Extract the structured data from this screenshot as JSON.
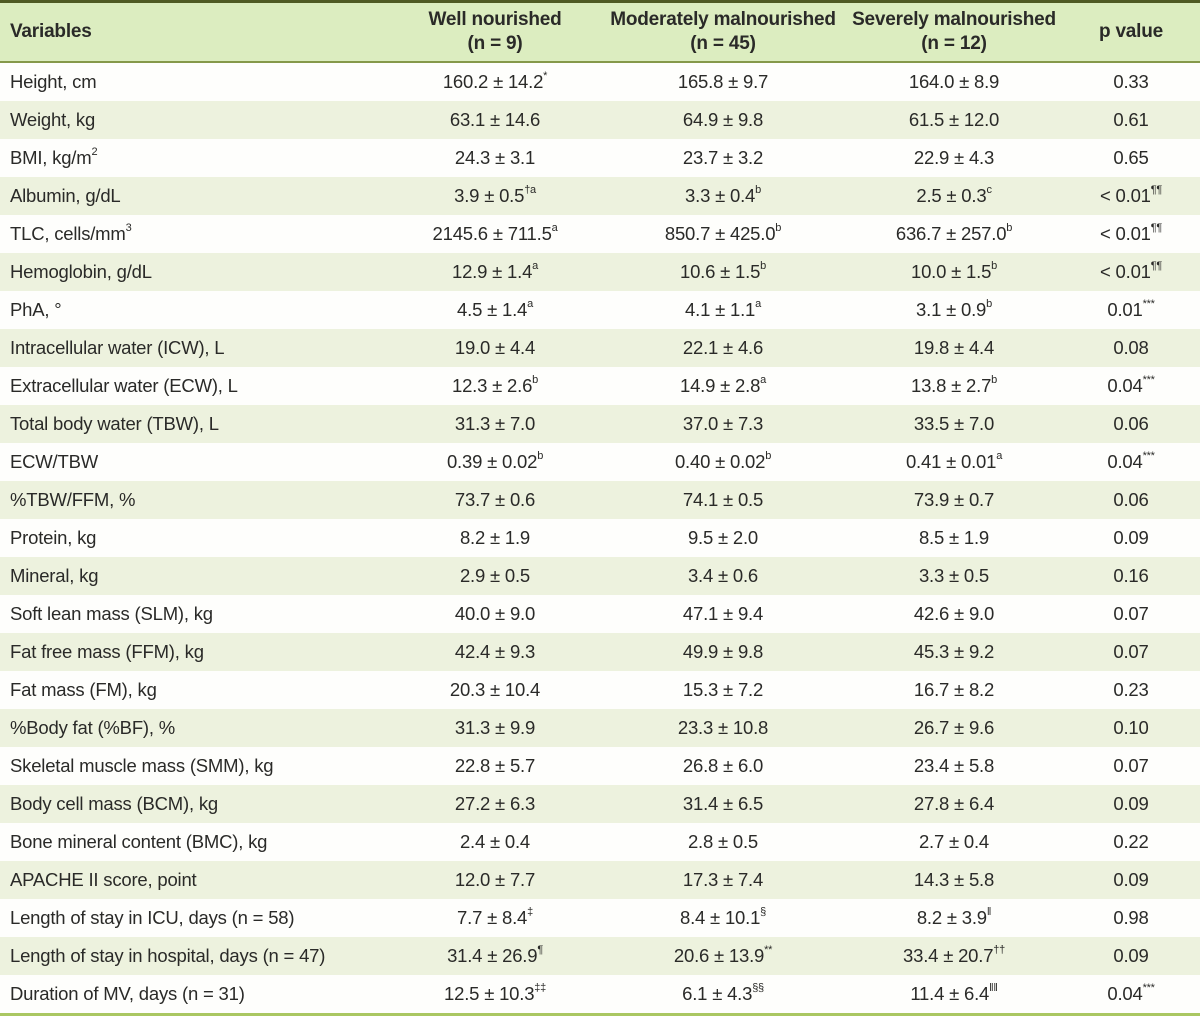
{
  "colors": {
    "header_bg": "#dcedc0",
    "stripe_bg": "#edf2de",
    "row_bg": "#fefefc",
    "top_border": "#4f5a24",
    "header_border": "#85994a",
    "bottom_border": "#aac762",
    "text": "#2a2a28"
  },
  "table": {
    "header": {
      "variables": "Variables",
      "groups": [
        {
          "line1": "Well nourished",
          "line2": "(n = 9)"
        },
        {
          "line1": "Moderately malnourished",
          "line2": "(n = 45)"
        },
        {
          "line1": "Severely malnourished",
          "line2": "(n = 12)"
        }
      ],
      "p": "p value"
    },
    "rows": [
      {
        "label": "Height, cm",
        "label_sup": "",
        "cells": [
          {
            "v": "160.2 ± 14.2",
            "s": "*"
          },
          {
            "v": "165.8 ± 9.7",
            "s": ""
          },
          {
            "v": "164.0 ± 8.9",
            "s": ""
          },
          {
            "v": "0.33",
            "s": ""
          }
        ]
      },
      {
        "label": "Weight, kg",
        "label_sup": "",
        "cells": [
          {
            "v": "63.1 ± 14.6",
            "s": ""
          },
          {
            "v": "64.9 ± 9.8",
            "s": ""
          },
          {
            "v": "61.5 ± 12.0",
            "s": ""
          },
          {
            "v": "0.61",
            "s": ""
          }
        ]
      },
      {
        "label": "BMI, kg/m",
        "label_sup": "2",
        "cells": [
          {
            "v": "24.3 ± 3.1",
            "s": ""
          },
          {
            "v": "23.7 ± 3.2",
            "s": ""
          },
          {
            "v": "22.9 ± 4.3",
            "s": ""
          },
          {
            "v": "0.65",
            "s": ""
          }
        ]
      },
      {
        "label": "Albumin, g/dL",
        "label_sup": "",
        "cells": [
          {
            "v": "3.9 ± 0.5",
            "s": "†a"
          },
          {
            "v": "3.3 ± 0.4",
            "s": "b"
          },
          {
            "v": "2.5 ± 0.3",
            "s": "c"
          },
          {
            "v": "< 0.01",
            "s": "¶¶"
          }
        ]
      },
      {
        "label": "TLC, cells/mm",
        "label_sup": "3",
        "cells": [
          {
            "v": "2145.6 ± 711.5",
            "s": "a"
          },
          {
            "v": "850.7 ± 425.0",
            "s": "b"
          },
          {
            "v": "636.7 ± 257.0",
            "s": "b"
          },
          {
            "v": "< 0.01",
            "s": "¶¶"
          }
        ]
      },
      {
        "label": "Hemoglobin, g/dL",
        "label_sup": "",
        "cells": [
          {
            "v": "12.9 ± 1.4",
            "s": "a"
          },
          {
            "v": "10.6 ± 1.5",
            "s": "b"
          },
          {
            "v": "10.0 ± 1.5",
            "s": "b"
          },
          {
            "v": "< 0.01",
            "s": "¶¶"
          }
        ]
      },
      {
        "label": "PhA, °",
        "label_sup": "",
        "cells": [
          {
            "v": "4.5 ± 1.4",
            "s": "a"
          },
          {
            "v": "4.1 ± 1.1",
            "s": "a"
          },
          {
            "v": "3.1 ± 0.9",
            "s": "b"
          },
          {
            "v": "0.01",
            "s": "***"
          }
        ]
      },
      {
        "label": "Intracellular water (ICW), L",
        "label_sup": "",
        "cells": [
          {
            "v": "19.0 ± 4.4",
            "s": ""
          },
          {
            "v": "22.1 ± 4.6",
            "s": ""
          },
          {
            "v": "19.8 ± 4.4",
            "s": ""
          },
          {
            "v": "0.08",
            "s": ""
          }
        ]
      },
      {
        "label": "Extracellular water (ECW), L",
        "label_sup": "",
        "cells": [
          {
            "v": "12.3 ± 2.6",
            "s": "b"
          },
          {
            "v": "14.9 ± 2.8",
            "s": "a"
          },
          {
            "v": "13.8 ± 2.7",
            "s": "b"
          },
          {
            "v": "0.04",
            "s": "***"
          }
        ]
      },
      {
        "label": "Total body water (TBW), L",
        "label_sup": "",
        "cells": [
          {
            "v": "31.3 ± 7.0",
            "s": ""
          },
          {
            "v": "37.0 ± 7.3",
            "s": ""
          },
          {
            "v": "33.5 ± 7.0",
            "s": ""
          },
          {
            "v": "0.06",
            "s": ""
          }
        ]
      },
      {
        "label": "ECW/TBW",
        "label_sup": "",
        "cells": [
          {
            "v": "0.39 ± 0.02",
            "s": "b"
          },
          {
            "v": "0.40 ± 0.02",
            "s": "b"
          },
          {
            "v": "0.41 ± 0.01",
            "s": "a"
          },
          {
            "v": "0.04",
            "s": "***"
          }
        ]
      },
      {
        "label": "%TBW/FFM, %",
        "label_sup": "",
        "cells": [
          {
            "v": "73.7 ± 0.6",
            "s": ""
          },
          {
            "v": "74.1 ± 0.5",
            "s": ""
          },
          {
            "v": "73.9 ± 0.7",
            "s": ""
          },
          {
            "v": "0.06",
            "s": ""
          }
        ]
      },
      {
        "label": "Protein, kg",
        "label_sup": "",
        "cells": [
          {
            "v": "8.2 ± 1.9",
            "s": ""
          },
          {
            "v": "9.5 ± 2.0",
            "s": ""
          },
          {
            "v": "8.5 ± 1.9",
            "s": ""
          },
          {
            "v": "0.09",
            "s": ""
          }
        ]
      },
      {
        "label": "Mineral, kg",
        "label_sup": "",
        "cells": [
          {
            "v": "2.9 ± 0.5",
            "s": ""
          },
          {
            "v": "3.4 ± 0.6",
            "s": ""
          },
          {
            "v": "3.3 ± 0.5",
            "s": ""
          },
          {
            "v": "0.16",
            "s": ""
          }
        ]
      },
      {
        "label": "Soft lean mass (SLM), kg",
        "label_sup": "",
        "cells": [
          {
            "v": "40.0 ± 9.0",
            "s": ""
          },
          {
            "v": "47.1 ± 9.4",
            "s": ""
          },
          {
            "v": "42.6 ± 9.0",
            "s": ""
          },
          {
            "v": "0.07",
            "s": ""
          }
        ]
      },
      {
        "label": "Fat free mass (FFM), kg",
        "label_sup": "",
        "cells": [
          {
            "v": "42.4 ± 9.3",
            "s": ""
          },
          {
            "v": "49.9 ± 9.8",
            "s": ""
          },
          {
            "v": "45.3 ± 9.2",
            "s": ""
          },
          {
            "v": "0.07",
            "s": ""
          }
        ]
      },
      {
        "label": "Fat mass (FM), kg",
        "label_sup": "",
        "cells": [
          {
            "v": "20.3 ± 10.4",
            "s": ""
          },
          {
            "v": "15.3 ± 7.2",
            "s": ""
          },
          {
            "v": "16.7 ± 8.2",
            "s": ""
          },
          {
            "v": "0.23",
            "s": ""
          }
        ]
      },
      {
        "label": "%Body fat (%BF), %",
        "label_sup": "",
        "cells": [
          {
            "v": "31.3 ± 9.9",
            "s": ""
          },
          {
            "v": "23.3 ± 10.8",
            "s": ""
          },
          {
            "v": "26.7 ± 9.6",
            "s": ""
          },
          {
            "v": "0.10",
            "s": ""
          }
        ]
      },
      {
        "label": "Skeletal muscle mass (SMM), kg",
        "label_sup": "",
        "cells": [
          {
            "v": "22.8 ± 5.7",
            "s": ""
          },
          {
            "v": "26.8 ± 6.0",
            "s": ""
          },
          {
            "v": "23.4 ± 5.8",
            "s": ""
          },
          {
            "v": "0.07",
            "s": ""
          }
        ]
      },
      {
        "label": "Body cell mass (BCM), kg",
        "label_sup": "",
        "cells": [
          {
            "v": "27.2 ± 6.3",
            "s": ""
          },
          {
            "v": "31.4 ± 6.5",
            "s": ""
          },
          {
            "v": "27.8 ± 6.4",
            "s": ""
          },
          {
            "v": "0.09",
            "s": ""
          }
        ]
      },
      {
        "label": "Bone mineral content (BMC), kg",
        "label_sup": "",
        "cells": [
          {
            "v": "2.4 ± 0.4",
            "s": ""
          },
          {
            "v": "2.8 ± 0.5",
            "s": ""
          },
          {
            "v": "2.7 ± 0.4",
            "s": ""
          },
          {
            "v": "0.22",
            "s": ""
          }
        ]
      },
      {
        "label": "APACHE II score, point",
        "label_sup": "",
        "cells": [
          {
            "v": "12.0 ± 7.7",
            "s": ""
          },
          {
            "v": "17.3 ± 7.4",
            "s": ""
          },
          {
            "v": "14.3 ± 5.8",
            "s": ""
          },
          {
            "v": "0.09",
            "s": ""
          }
        ]
      },
      {
        "label": "Length of stay in ICU, days (n = 58)",
        "label_sup": "",
        "cells": [
          {
            "v": "7.7 ± 8.4",
            "s": "‡"
          },
          {
            "v": "8.4 ± 10.1",
            "s": "§"
          },
          {
            "v": "8.2 ± 3.9",
            "s": "‖"
          },
          {
            "v": "0.98",
            "s": ""
          }
        ]
      },
      {
        "label": "Length of stay in hospital, days (n = 47)",
        "label_sup": "",
        "cells": [
          {
            "v": "31.4 ± 26.9",
            "s": "¶"
          },
          {
            "v": "20.6 ± 13.9",
            "s": "**"
          },
          {
            "v": "33.4 ± 20.7",
            "s": "††"
          },
          {
            "v": "0.09",
            "s": ""
          }
        ]
      },
      {
        "label": "Duration of MV, days (n = 31)",
        "label_sup": "",
        "cells": [
          {
            "v": "12.5 ± 10.3",
            "s": "‡‡"
          },
          {
            "v": "6.1 ± 4.3",
            "s": "§§"
          },
          {
            "v": "11.4 ± 6.4",
            "s": "‖‖"
          },
          {
            "v": "0.04",
            "s": "***"
          }
        ]
      }
    ]
  }
}
